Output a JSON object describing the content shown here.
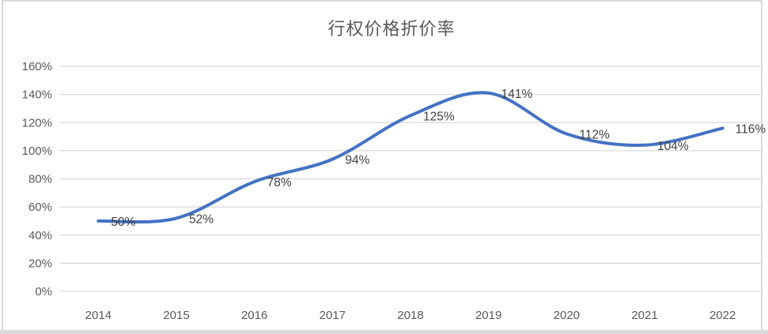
{
  "chart_data": {
    "type": "line",
    "title": "行权价格折价率",
    "categories": [
      "2014",
      "2015",
      "2016",
      "2017",
      "2018",
      "2019",
      "2020",
      "2021",
      "2022"
    ],
    "series": [
      {
        "name": "行权价格折价率",
        "values": [
          50,
          52,
          78,
          94,
          125,
          141,
          112,
          104,
          116
        ],
        "data_labels": [
          "50%",
          "52%",
          "78%",
          "94%",
          "125%",
          "141%",
          "112%",
          "104%",
          "116%"
        ]
      }
    ],
    "xlabel": "",
    "ylabel": "",
    "ylim": [
      0,
      160
    ],
    "y_ticks": [
      {
        "value": 0,
        "label": "0%"
      },
      {
        "value": 20,
        "label": "20%"
      },
      {
        "value": 40,
        "label": "40%"
      },
      {
        "value": 60,
        "label": "60%"
      },
      {
        "value": 80,
        "label": "80%"
      },
      {
        "value": 100,
        "label": "100%"
      },
      {
        "value": 120,
        "label": "120%"
      },
      {
        "value": 140,
        "label": "140%"
      },
      {
        "value": 160,
        "label": "160%"
      }
    ],
    "grid": true,
    "legend": "none",
    "smooth": true,
    "colors": {
      "line": "#4472C4",
      "title": "#595959",
      "axis_text": "#595959",
      "data_label": "#404040",
      "gridline": "#D9D9D9",
      "border": "#D9D9D9",
      "background": "#FFFFFF"
    }
  }
}
